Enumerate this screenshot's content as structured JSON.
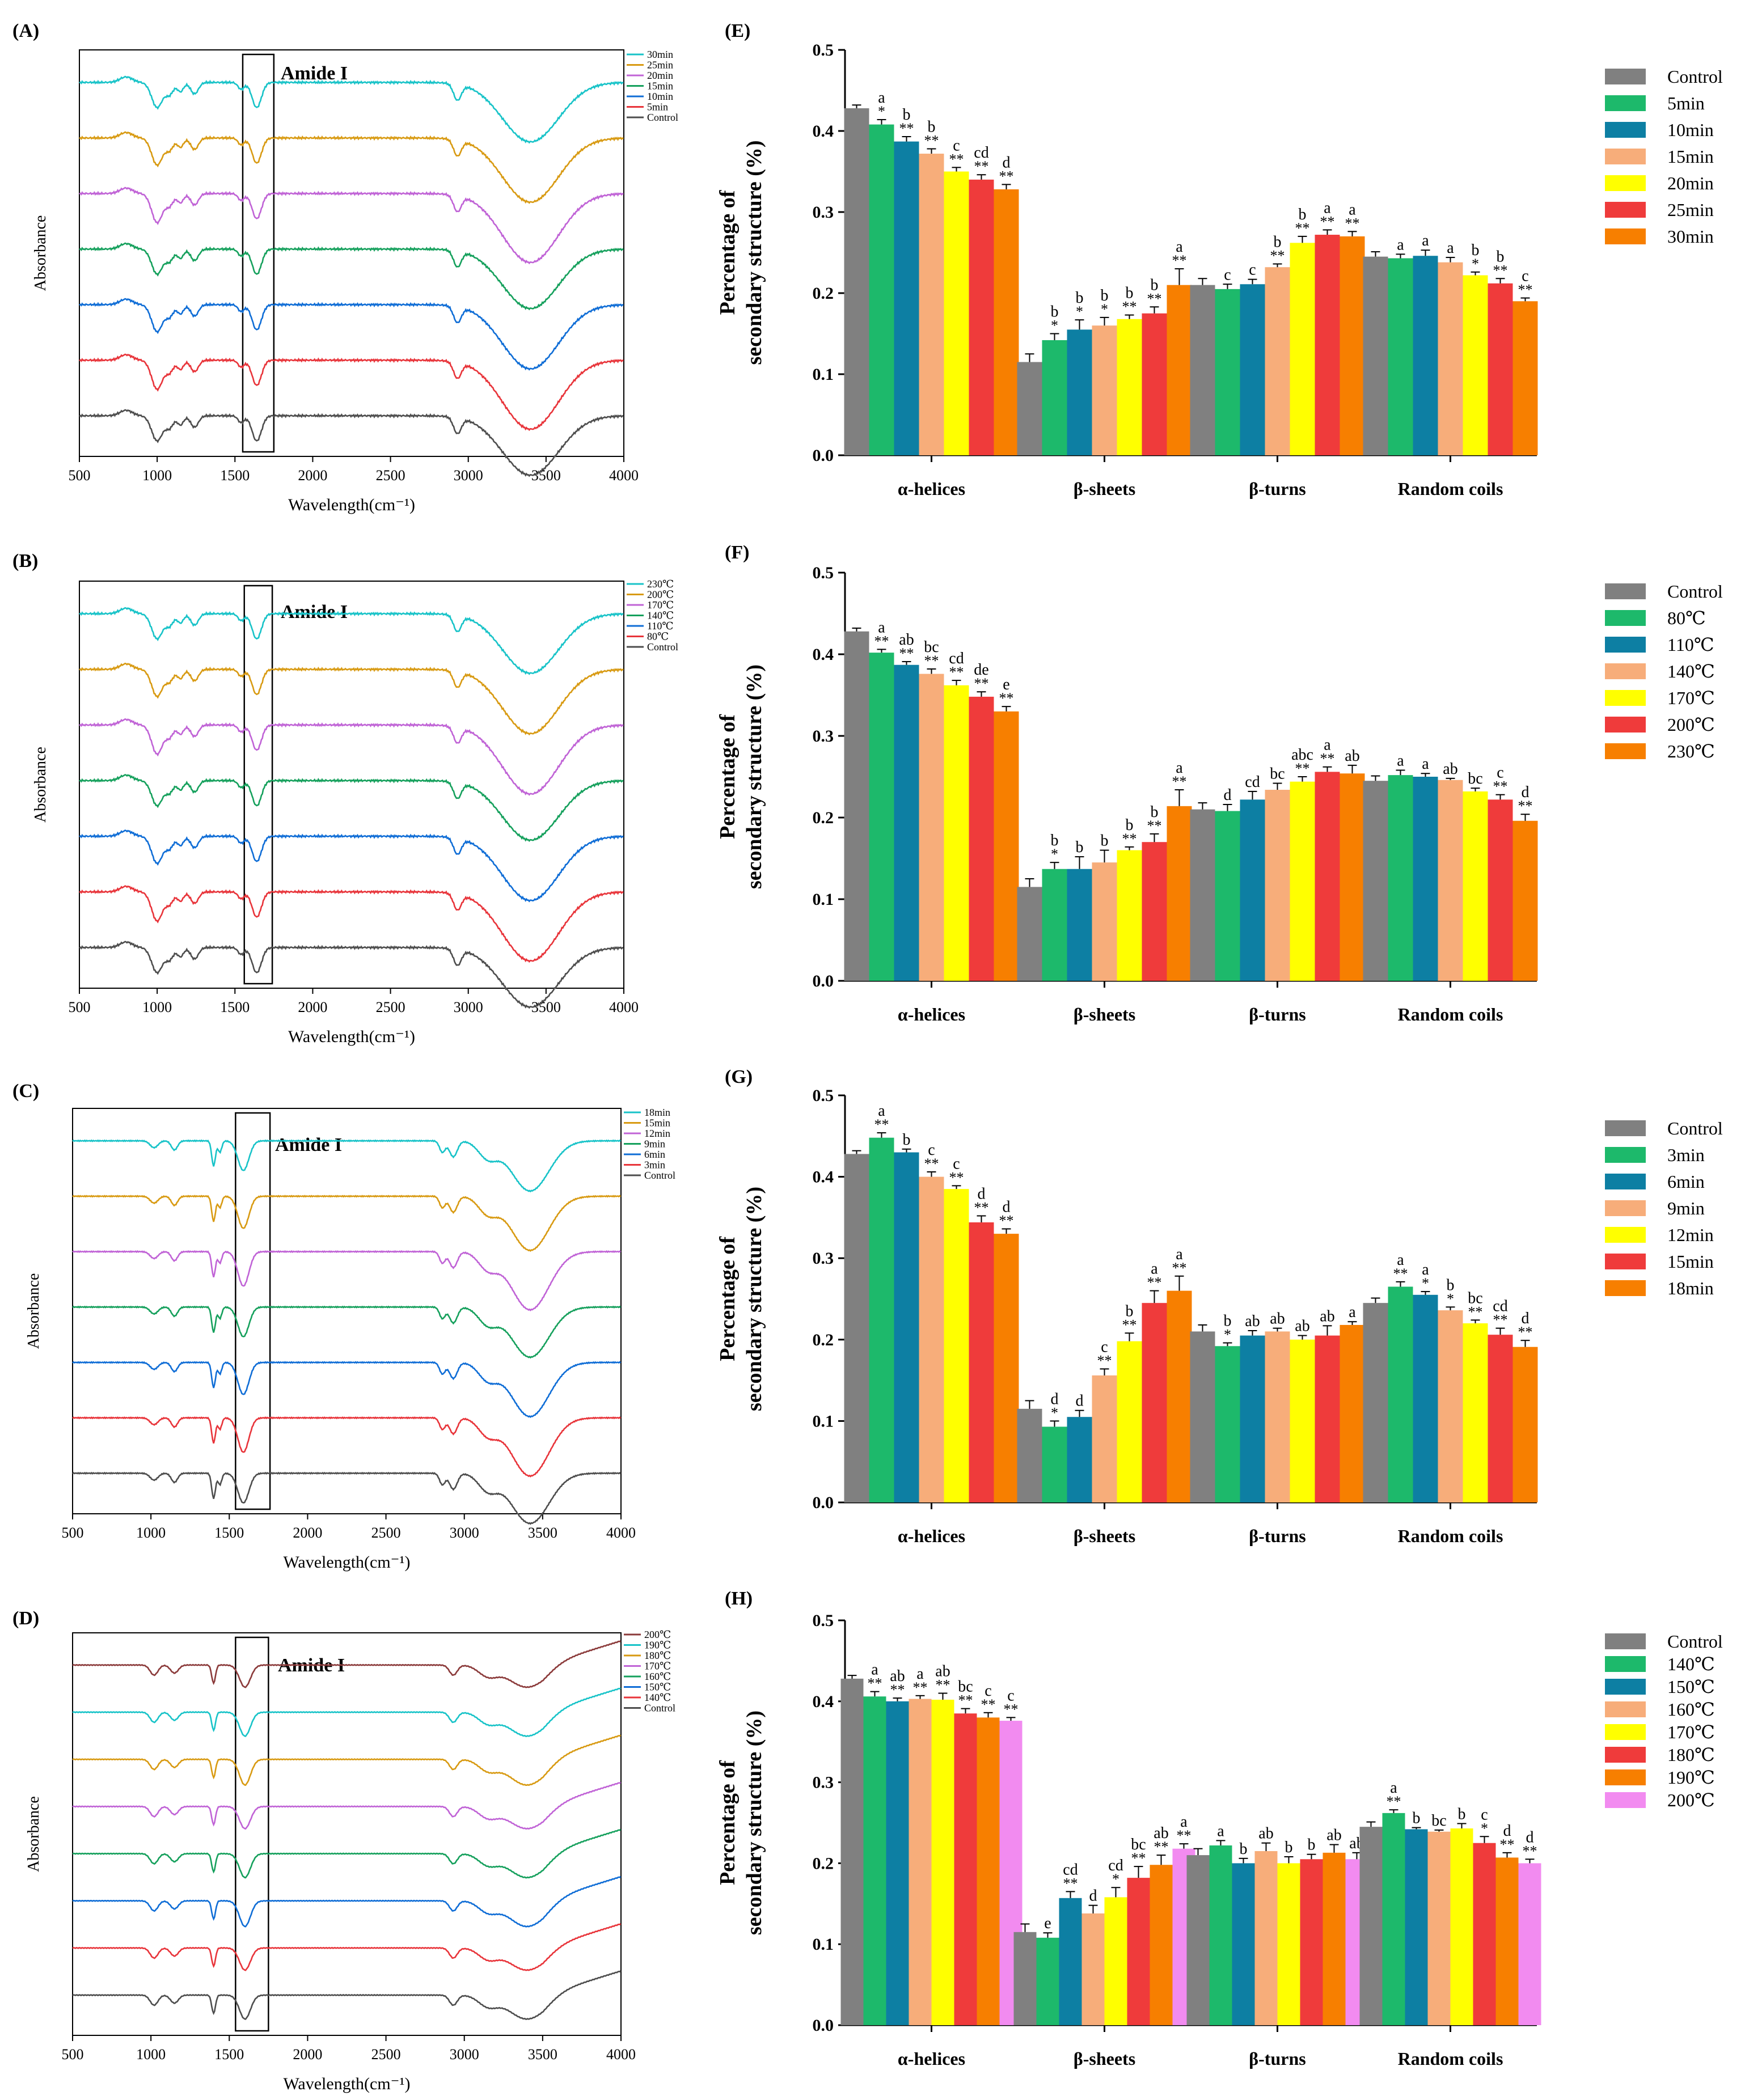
{
  "colors": {
    "control": "#4d4d4d",
    "ftir": [
      "#e8343a",
      "#0f6dd6",
      "#15a05c",
      "#c063d6",
      "#d89a12",
      "#18c3c8",
      "#8b3a3a"
    ],
    "bars_6": [
      "#808080",
      "#1db96b",
      "#0d7fa3",
      "#f7ad7a",
      "#ffff00",
      "#ef3b3b",
      "#f77f00"
    ],
    "bars_8": [
      "#808080",
      "#1db96b",
      "#0d7fa3",
      "#f7ad7a",
      "#ffff00",
      "#ef3b3b",
      "#f77f00",
      "#f28bf0"
    ]
  },
  "chart_data": [
    {
      "panel": "(A)",
      "type": "line",
      "title": "Amide I",
      "xlabel": "Wavelength(cm⁻¹)",
      "ylabel": "Absorbance",
      "xlim": [
        500,
        4000
      ],
      "xticks": [
        "500",
        "1000",
        "1500",
        "2000",
        "2500",
        "3000",
        "3500",
        "4000"
      ],
      "legend": [
        "30min",
        "25min",
        "20min",
        "15min",
        "10min",
        "5min",
        "Control"
      ],
      "box_range": [
        1550,
        1750
      ],
      "kind": "ftir1"
    },
    {
      "panel": "(B)",
      "type": "line",
      "title": "Amide I",
      "xlabel": "Wavelength(cm⁻¹)",
      "ylabel": "Absorbance",
      "xlim": [
        500,
        4000
      ],
      "xticks": [
        "500",
        "1000",
        "1500",
        "2000",
        "2500",
        "3000",
        "3500",
        "4000"
      ],
      "legend": [
        "230℃",
        "200℃",
        "170℃",
        "140℃",
        "110℃",
        "80℃",
        "Control"
      ],
      "box_range": [
        1560,
        1740
      ],
      "kind": "ftir1"
    },
    {
      "panel": "(C)",
      "type": "line",
      "title": "Amide I",
      "xlabel": "Wavelength(cm⁻¹)",
      "ylabel": "Absorbance",
      "xlim": [
        500,
        4000
      ],
      "xticks": [
        "500",
        "1000",
        "1500",
        "2000",
        "2500",
        "3000",
        "3500",
        "4000"
      ],
      "legend": [
        "18min",
        "15min",
        "12min",
        "9min",
        "6min",
        "3min",
        "Control"
      ],
      "box_range": [
        1540,
        1760
      ],
      "kind": "ftir2"
    },
    {
      "panel": "(D)",
      "type": "line",
      "title": "Amide I",
      "xlabel": "Wavelength(cm⁻¹)",
      "ylabel": "Absorbance",
      "xlim": [
        500,
        4000
      ],
      "xticks": [
        "500",
        "1000",
        "1500",
        "2000",
        "2500",
        "3000",
        "3500",
        "4000"
      ],
      "legend": [
        "200℃",
        "190℃",
        "180℃",
        "170℃",
        "160℃",
        "150℃",
        "140℃",
        "Control"
      ],
      "box_range": [
        1540,
        1750
      ],
      "kind": "ftir3"
    },
    {
      "panel": "(E)",
      "type": "bar",
      "ylabel": [
        "Percentage of",
        "secondary structure (%)"
      ],
      "ylim": [
        0,
        0.5
      ],
      "yticks": [
        "0.0",
        "0.1",
        "0.2",
        "0.3",
        "0.4",
        "0.5"
      ],
      "categories": [
        "α-helices",
        "β-sheets",
        "β-turns",
        "Random coils"
      ],
      "series": [
        {
          "name": "Control",
          "values": [
            0.428,
            0.115,
            0.21,
            0.245
          ],
          "err": [
            0.004,
            0.01,
            0.008,
            0.006
          ]
        },
        {
          "name": "5min",
          "values": [
            0.408,
            0.142,
            0.205,
            0.243
          ],
          "err": [
            0.006,
            0.008,
            0.006,
            0.005
          ]
        },
        {
          "name": "10min",
          "values": [
            0.387,
            0.155,
            0.211,
            0.246
          ],
          "err": [
            0.006,
            0.012,
            0.006,
            0.007
          ]
        },
        {
          "name": "15min",
          "values": [
            0.372,
            0.16,
            0.232,
            0.238
          ],
          "err": [
            0.006,
            0.01,
            0.004,
            0.006
          ]
        },
        {
          "name": "20min",
          "values": [
            0.35,
            0.168,
            0.262,
            0.222
          ],
          "err": [
            0.005,
            0.005,
            0.008,
            0.004
          ]
        },
        {
          "name": "25min",
          "values": [
            0.34,
            0.175,
            0.272,
            0.212
          ],
          "err": [
            0.006,
            0.008,
            0.006,
            0.006
          ]
        },
        {
          "name": "30min",
          "values": [
            0.328,
            0.21,
            0.27,
            0.19
          ],
          "err": [
            0.006,
            0.02,
            0.006,
            0.004
          ]
        }
      ],
      "annotations": [
        [
          "",
          "",
          "",
          ""
        ],
        [
          "a *",
          "b *",
          "c",
          "a"
        ],
        [
          "b **",
          "b *",
          "c",
          "a"
        ],
        [
          "b **",
          "b *",
          "b **",
          "a"
        ],
        [
          "c **",
          "b **",
          "b **",
          "b *"
        ],
        [
          "cd **",
          "b **",
          "a **",
          "b **"
        ],
        [
          "d **",
          "a **",
          "a **",
          "c **"
        ]
      ]
    },
    {
      "panel": "(F)",
      "type": "bar",
      "ylabel": [
        "Percentage of",
        "secondary structure (%)"
      ],
      "ylim": [
        0,
        0.5
      ],
      "yticks": [
        "0.0",
        "0.1",
        "0.2",
        "0.3",
        "0.4",
        "0.5"
      ],
      "categories": [
        "α-helices",
        "β-sheets",
        "β-turns",
        "Random coils"
      ],
      "series": [
        {
          "name": "Control",
          "values": [
            0.428,
            0.115,
            0.21,
            0.245
          ],
          "err": [
            0.004,
            0.01,
            0.008,
            0.006
          ]
        },
        {
          "name": "80℃",
          "values": [
            0.402,
            0.137,
            0.208,
            0.252
          ],
          "err": [
            0.004,
            0.008,
            0.008,
            0.006
          ]
        },
        {
          "name": "110℃",
          "values": [
            0.387,
            0.137,
            0.222,
            0.25
          ],
          "err": [
            0.004,
            0.015,
            0.01,
            0.004
          ]
        },
        {
          "name": "140℃",
          "values": [
            0.376,
            0.145,
            0.234,
            0.246
          ],
          "err": [
            0.006,
            0.015,
            0.008,
            0.002
          ]
        },
        {
          "name": "170℃",
          "values": [
            0.362,
            0.16,
            0.244,
            0.232
          ],
          "err": [
            0.006,
            0.004,
            0.006,
            0.004
          ]
        },
        {
          "name": "200℃",
          "values": [
            0.348,
            0.17,
            0.256,
            0.222
          ],
          "err": [
            0.006,
            0.01,
            0.006,
            0.006
          ]
        },
        {
          "name": "230℃",
          "values": [
            0.33,
            0.214,
            0.254,
            0.196
          ],
          "err": [
            0.006,
            0.02,
            0.01,
            0.008
          ]
        }
      ],
      "annotations": [
        [
          "",
          "",
          "",
          ""
        ],
        [
          "a **",
          "b *",
          "d",
          "a"
        ],
        [
          "ab **",
          "b",
          "cd",
          "a"
        ],
        [
          "bc **",
          "b",
          "bc",
          "ab"
        ],
        [
          "cd **",
          "b **",
          "abc **",
          "bc"
        ],
        [
          "de **",
          "b **",
          "a **",
          "c **"
        ],
        [
          "e **",
          "a **",
          "ab",
          "d **"
        ]
      ]
    },
    {
      "panel": "(G)",
      "type": "bar",
      "ylabel": [
        "Percentage of",
        "secondary structure (%)"
      ],
      "ylim": [
        0,
        0.5
      ],
      "yticks": [
        "0.0",
        "0.1",
        "0.2",
        "0.3",
        "0.4",
        "0.5"
      ],
      "categories": [
        "α-helices",
        "β-sheets",
        "β-turns",
        "Random coils"
      ],
      "series": [
        {
          "name": "Control",
          "values": [
            0.428,
            0.115,
            0.21,
            0.245
          ],
          "err": [
            0.004,
            0.01,
            0.008,
            0.006
          ]
        },
        {
          "name": "3min",
          "values": [
            0.448,
            0.093,
            0.192,
            0.265
          ],
          "err": [
            0.006,
            0.007,
            0.004,
            0.006
          ]
        },
        {
          "name": "6min",
          "values": [
            0.43,
            0.105,
            0.205,
            0.255
          ],
          "err": [
            0.004,
            0.008,
            0.006,
            0.004
          ]
        },
        {
          "name": "9min",
          "values": [
            0.4,
            0.156,
            0.21,
            0.236
          ],
          "err": [
            0.006,
            0.008,
            0.004,
            0.004
          ]
        },
        {
          "name": "12min",
          "values": [
            0.385,
            0.198,
            0.2,
            0.22
          ],
          "err": [
            0.004,
            0.01,
            0.005,
            0.004
          ]
        },
        {
          "name": "15min",
          "values": [
            0.344,
            0.245,
            0.205,
            0.206
          ],
          "err": [
            0.008,
            0.015,
            0.012,
            0.008
          ]
        },
        {
          "name": "18min",
          "values": [
            0.33,
            0.26,
            0.218,
            0.191
          ],
          "err": [
            0.006,
            0.018,
            0.004,
            0.008
          ]
        }
      ],
      "annotations": [
        [
          "",
          "",
          "",
          ""
        ],
        [
          "a **",
          "d *",
          "b *",
          "a **"
        ],
        [
          "b",
          "d",
          "ab",
          "a *"
        ],
        [
          "c **",
          "c **",
          "ab",
          "b *"
        ],
        [
          "c **",
          "b **",
          "ab",
          "bc **"
        ],
        [
          "d **",
          "a **",
          "ab",
          "cd **"
        ],
        [
          "d **",
          "a **",
          "a",
          "d **"
        ]
      ]
    },
    {
      "panel": "(H)",
      "type": "bar",
      "ylabel": [
        "Percentage of",
        "secondary structure (%)"
      ],
      "ylim": [
        0,
        0.5
      ],
      "yticks": [
        "0.0",
        "0.1",
        "0.2",
        "0.3",
        "0.4",
        "0.5"
      ],
      "categories": [
        "α-helices",
        "β-sheets",
        "β-turns",
        "Random coils"
      ],
      "series": [
        {
          "name": "Control",
          "values": [
            0.428,
            0.115,
            0.21,
            0.245
          ],
          "err": [
            0.004,
            0.01,
            0.008,
            0.006
          ]
        },
        {
          "name": "140℃",
          "values": [
            0.406,
            0.108,
            0.222,
            0.262
          ],
          "err": [
            0.006,
            0.006,
            0.006,
            0.004
          ]
        },
        {
          "name": "150℃",
          "values": [
            0.4,
            0.157,
            0.2,
            0.242
          ],
          "err": [
            0.004,
            0.008,
            0.006,
            0.002
          ]
        },
        {
          "name": "160℃",
          "values": [
            0.403,
            0.138,
            0.215,
            0.239
          ],
          "err": [
            0.004,
            0.01,
            0.01,
            0.002
          ]
        },
        {
          "name": "170℃",
          "values": [
            0.402,
            0.158,
            0.2,
            0.243
          ],
          "err": [
            0.008,
            0.012,
            0.008,
            0.006
          ]
        },
        {
          "name": "180℃",
          "values": [
            0.385,
            0.182,
            0.205,
            0.225
          ],
          "err": [
            0.006,
            0.014,
            0.006,
            0.008
          ]
        },
        {
          "name": "190℃",
          "values": [
            0.38,
            0.198,
            0.213,
            0.207
          ],
          "err": [
            0.006,
            0.012,
            0.01,
            0.006
          ]
        },
        {
          "name": "200℃",
          "values": [
            0.376,
            0.218,
            0.205,
            0.2
          ],
          "err": [
            0.004,
            0.006,
            0.008,
            0.005
          ]
        }
      ],
      "annotations": [
        [
          "",
          "",
          "",
          ""
        ],
        [
          "a **",
          "e",
          "a",
          "a **"
        ],
        [
          "ab **",
          "cd **",
          "b",
          "b"
        ],
        [
          "a **",
          "d",
          "ab",
          "bc"
        ],
        [
          "ab **",
          "cd *",
          "b",
          "b"
        ],
        [
          "bc **",
          "bc **",
          "b",
          "c *"
        ],
        [
          "c **",
          "ab **",
          "ab",
          "d **"
        ],
        [
          "c **",
          "a **",
          "ab",
          "d **"
        ]
      ]
    }
  ]
}
